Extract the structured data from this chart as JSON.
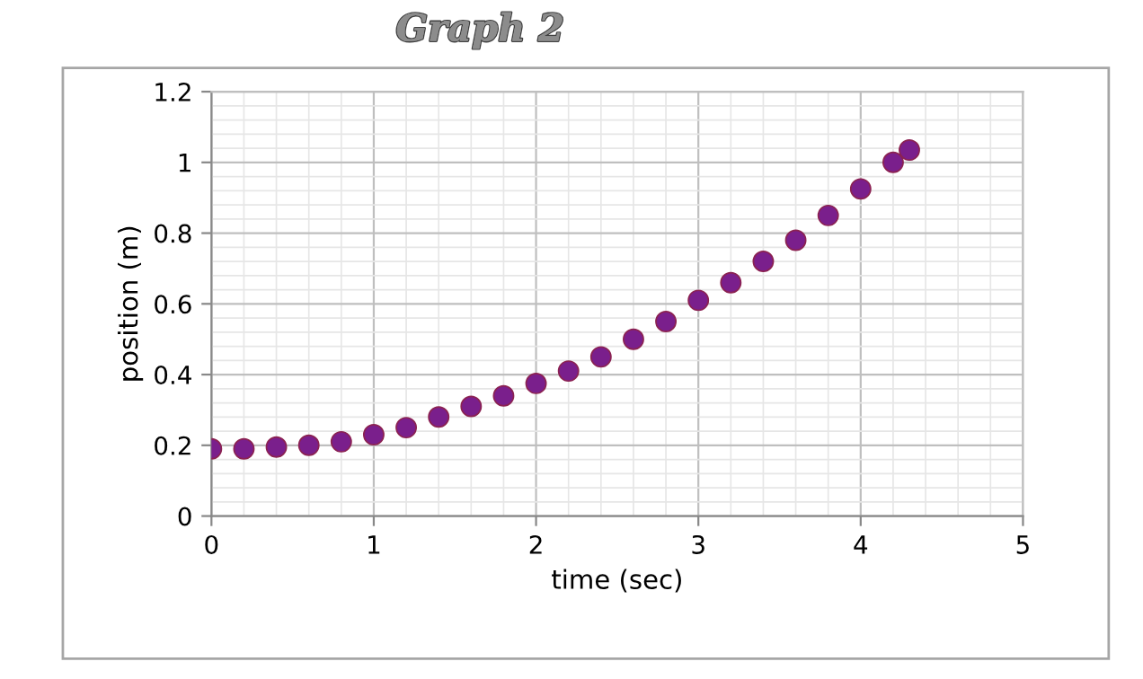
{
  "chart_data": {
    "type": "scatter",
    "title": "Graph 2",
    "xlabel": "time (sec)",
    "ylabel": "position (m)",
    "x": [
      0,
      0.2,
      0.4,
      0.6,
      0.8,
      1.0,
      1.2,
      1.4,
      1.6,
      1.8,
      2.0,
      2.2,
      2.4,
      2.6,
      2.8,
      3.0,
      3.2,
      3.4,
      3.6,
      3.8,
      4.0,
      4.2,
      4.3
    ],
    "series": [
      {
        "color": "#7a1f8c",
        "values": [
          0.19,
          0.19,
          0.195,
          0.2,
          0.21,
          0.23,
          0.25,
          0.28,
          0.31,
          0.34,
          0.375,
          0.41,
          0.45,
          0.5,
          0.55,
          0.61,
          0.66,
          0.72,
          0.78,
          0.85,
          0.925,
          1.0,
          1.035
        ]
      }
    ],
    "xlim": [
      0,
      5
    ],
    "xticks": [
      0,
      1,
      2,
      3,
      4,
      5
    ],
    "ylim": [
      0,
      1.2
    ],
    "yticks": [
      0,
      0.2,
      0.4,
      0.6,
      0.8,
      1,
      1.2
    ],
    "grid": true,
    "marker": "circle",
    "legend": false
  }
}
